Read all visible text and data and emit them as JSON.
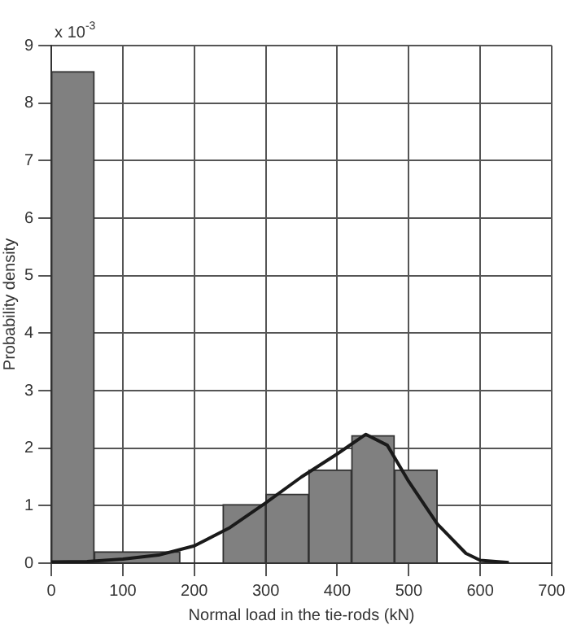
{
  "chart_data": {
    "type": "histogram",
    "xlabel": "Normal load in the tie-rods (kN)",
    "ylabel": "Probability density",
    "bins": [
      0,
      60,
      180,
      240,
      300,
      360,
      420,
      480,
      540
    ],
    "values": [
      8.55,
      0.2,
      0,
      1.02,
      1.2,
      1.62,
      2.22,
      1.62
    ],
    "color": "#808080",
    "series": [
      {
        "type": "line",
        "color": "#1a1a1a",
        "marker": "none",
        "x": [
          0,
          50,
          100,
          150,
          200,
          250,
          300,
          350,
          400,
          440,
          470,
          500,
          540,
          580,
          600,
          640
        ],
        "values": [
          0.02,
          0.03,
          0.07,
          0.14,
          0.3,
          0.62,
          1.05,
          1.5,
          1.9,
          2.24,
          2.05,
          1.42,
          0.68,
          0.17,
          0.05,
          0.01
        ]
      }
    ],
    "xlim": [
      0,
      700
    ],
    "xticks": [
      0,
      100,
      200,
      300,
      400,
      500,
      600,
      700
    ],
    "ylim": [
      0,
      9
    ],
    "yticks": [
      0,
      1,
      2,
      3,
      4,
      5,
      6,
      7,
      8,
      9
    ],
    "annotations": [
      "x 10$^{-3}$"
    ],
    "grid": true,
    "legend": false
  }
}
